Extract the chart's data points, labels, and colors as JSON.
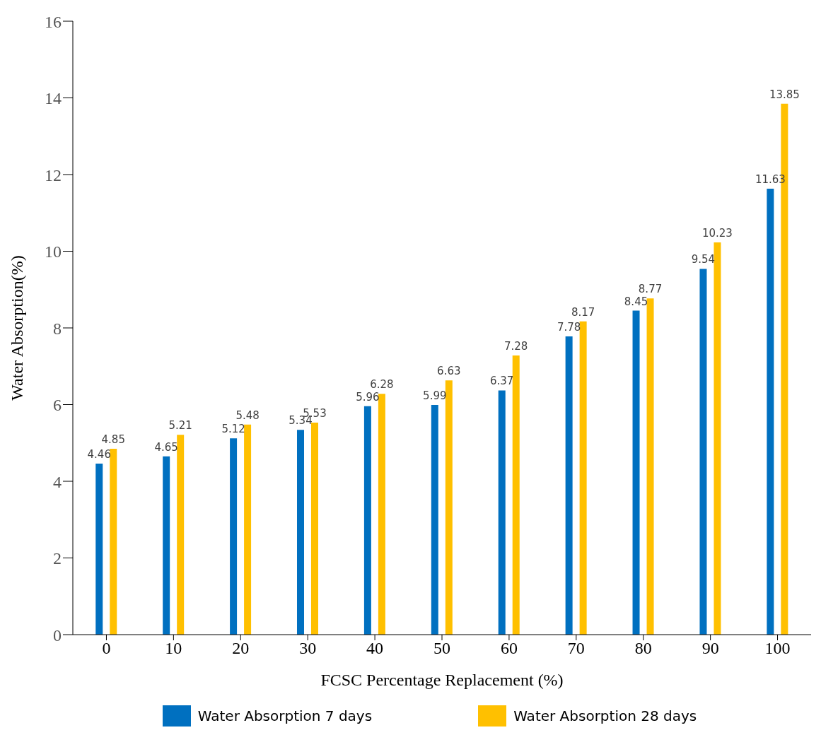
{
  "chart_data": {
    "type": "bar",
    "xlabel": "FCSC Percentage Replacement (%)",
    "ylabel": "Water Absorption(%)",
    "categories": [
      "0",
      "10",
      "20",
      "30",
      "40",
      "50",
      "60",
      "70",
      "80",
      "90",
      "100"
    ],
    "series": [
      {
        "name": "Water Absorption 7 days",
        "color": "#0070c0",
        "values": [
          4.46,
          4.65,
          5.12,
          5.34,
          5.96,
          5.99,
          6.37,
          7.78,
          8.45,
          9.54,
          11.63
        ]
      },
      {
        "name": "Water Absorption 28 days",
        "color": "#ffc000",
        "values": [
          4.85,
          5.21,
          5.48,
          5.53,
          6.28,
          6.63,
          7.28,
          8.17,
          8.77,
          10.23,
          13.85
        ]
      }
    ],
    "ylim": [
      0,
      16
    ],
    "yticks": [
      0,
      2,
      4,
      6,
      8,
      10,
      12,
      14,
      16
    ],
    "grid": false,
    "legend": "bottom",
    "data_labels": true
  }
}
